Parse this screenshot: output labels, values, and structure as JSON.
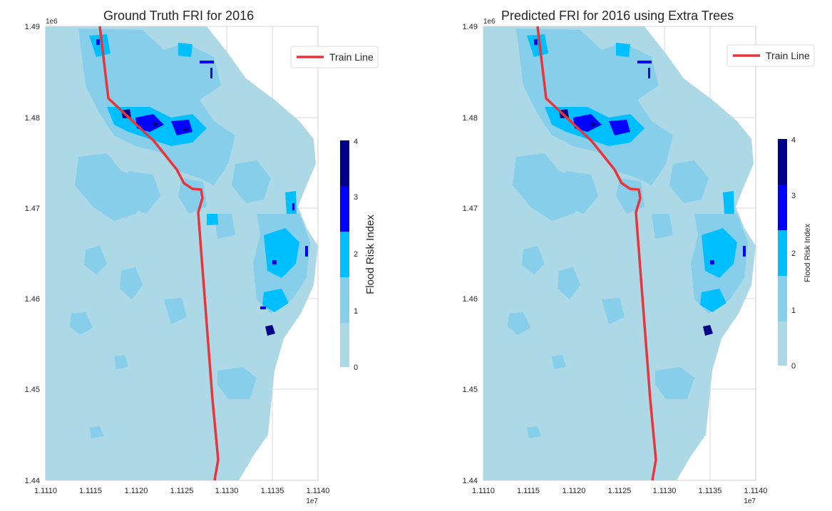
{
  "panels": [
    {
      "title": "Ground Truth FRI for 2016",
      "legend_label": "Train Line",
      "colorbar_label": "Flood Risk Index",
      "y_offset": "1e6",
      "x_offset": "1e7",
      "y_ticks": [
        "1.49",
        "1.48",
        "1.47",
        "1.46",
        "1.45",
        "1.44"
      ],
      "x_ticks": [
        "1.1110",
        "1.1115",
        "1.1120",
        "1.1125",
        "1.1130",
        "1.1135",
        "1.1140"
      ],
      "colorbar_ticks": [
        "0",
        "1",
        "2",
        "3",
        "4"
      ]
    },
    {
      "title": "Predicted FRI for 2016 using Extra Trees",
      "legend_label": "Train Line",
      "colorbar_label": "Flood Risk Index",
      "y_offset": "1e6",
      "x_offset": "1e7",
      "y_ticks": [
        "1.49",
        "1.48",
        "1.47",
        "1.46",
        "1.45",
        "1.44"
      ],
      "x_ticks": [
        "1.1110",
        "1.1115",
        "1.1120",
        "1.1125",
        "1.1130",
        "1.1135",
        "1.1140"
      ],
      "colorbar_ticks": [
        "0",
        "1",
        "2",
        "3",
        "4"
      ]
    }
  ],
  "colors": {
    "fri_0": "#add8e6",
    "fri_1": "#87ceeb",
    "fri_2": "#00bfff",
    "fri_3": "#0000ff",
    "fri_4": "#00008b",
    "train_line": "#e8343a",
    "grid": "#d9d9d9"
  }
}
